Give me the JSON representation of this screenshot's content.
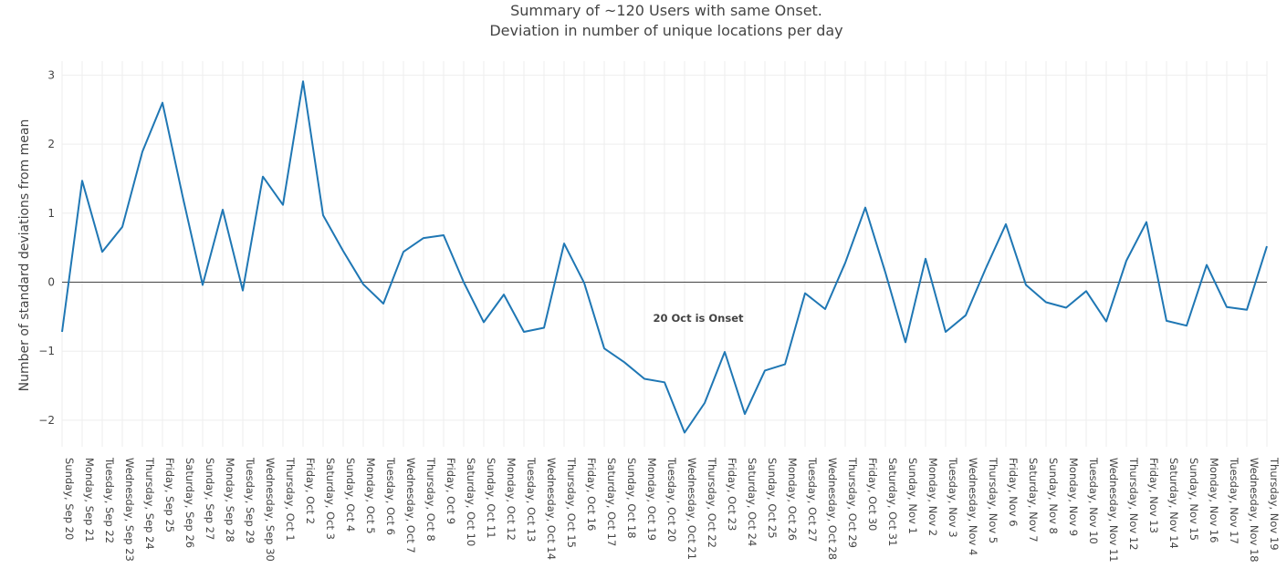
{
  "chart_data": {
    "type": "line",
    "title": "Summary of ~120 Users with same Onset.",
    "subtitle": "Deviation in number of unique locations per day",
    "xlabel": "",
    "ylabel": "Number of standard deviations from mean",
    "ylim": [
      -2.4,
      3.2
    ],
    "yticks": [
      3,
      2,
      1,
      0,
      -1,
      -2
    ],
    "ytick_labels": [
      "3",
      "2",
      "1",
      "0",
      "−1",
      "−2"
    ],
    "grid": true,
    "legend": "none",
    "line_color": "#1f77b4",
    "categories": [
      "Sunday, Sep 20",
      "Monday, Sep 21",
      "Tuesday, Sep 22",
      "Wednesday, Sep 23",
      "Thursday, Sep 24",
      "Friday, Sep 25",
      "Saturday, Sep 26",
      "Sunday, Sep 27",
      "Monday, Sep 28",
      "Tuesday, Sep 29",
      "Wednesday, Sep 30",
      "Thursday, Oct 1",
      "Friday, Oct 2",
      "Saturday, Oct 3",
      "Sunday, Oct 4",
      "Monday, Oct 5",
      "Tuesday, Oct 6",
      "Wednesday, Oct 7",
      "Thursday, Oct 8",
      "Friday, Oct 9",
      "Saturday, Oct 10",
      "Sunday, Oct 11",
      "Monday, Oct 12",
      "Tuesday, Oct 13",
      "Wednesday, Oct 14",
      "Thursday, Oct 15",
      "Friday, Oct 16",
      "Saturday, Oct 17",
      "Sunday, Oct 18",
      "Monday, Oct 19",
      "Tuesday, Oct 20",
      "Wednesday, Oct 21",
      "Thursday, Oct 22",
      "Friday, Oct 23",
      "Saturday, Oct 24",
      "Sunday, Oct 25",
      "Monday, Oct 26",
      "Tuesday, Oct 27",
      "Wednesday, Oct 28",
      "Thursday, Oct 29",
      "Friday, Oct 30",
      "Saturday, Oct 31",
      "Sunday, Nov 1",
      "Monday, Nov 2",
      "Tuesday, Nov 3",
      "Wednesday, Nov 4",
      "Thursday, Nov 5",
      "Friday, Nov 6",
      "Saturday, Nov 7",
      "Sunday, Nov 8",
      "Monday, Nov 9",
      "Tuesday, Nov 10",
      "Wednesday, Nov 11",
      "Thursday, Nov 12",
      "Friday, Nov 13",
      "Saturday, Nov 14",
      "Sunday, Nov 15",
      "Monday, Nov 16",
      "Tuesday, Nov 17",
      "Wednesday, Nov 18",
      "Thursday, Nov 19"
    ],
    "values": [
      -0.72,
      1.47,
      0.44,
      0.8,
      1.89,
      2.6,
      1.25,
      -0.04,
      1.05,
      -0.12,
      1.53,
      1.12,
      2.91,
      0.97,
      0.45,
      -0.03,
      -0.31,
      0.44,
      0.64,
      0.68,
      0.0,
      -0.58,
      -0.18,
      -0.72,
      -0.66,
      0.56,
      -0.01,
      -0.96,
      -1.16,
      -1.4,
      -1.45,
      -2.18,
      -1.75,
      -1.01,
      -1.91,
      -1.28,
      -1.19,
      -0.16,
      -0.39,
      0.28,
      1.08,
      0.14,
      -0.87,
      0.34,
      -0.72,
      -0.48,
      0.2,
      0.84,
      -0.04,
      -0.29,
      -0.37,
      -0.13,
      -0.57,
      0.31,
      0.87,
      -0.56,
      -0.63,
      0.25,
      -0.36,
      -0.4,
      0.52
    ],
    "annotations": [
      {
        "text": "20 Oct is Onset",
        "x": "Monday, Oct 19",
        "y": -0.52
      }
    ]
  }
}
